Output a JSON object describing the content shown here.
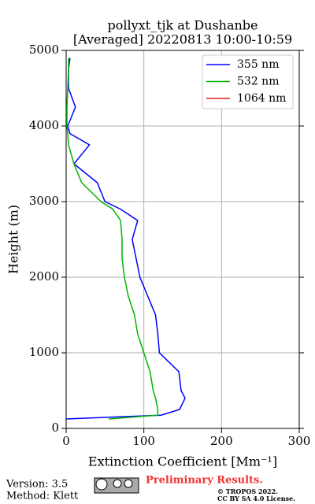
{
  "chart_data": {
    "type": "line",
    "title": "pollyxt_tjk at Dushanbe",
    "subtitle": "[Averaged] 20220813 10:00-10:59",
    "x_label": "Extinction Coefficient [Mm⁻¹]",
    "y_label": "Height (m)",
    "y": [
      125,
      175,
      250,
      400,
      500,
      750,
      1000,
      1250,
      1500,
      1750,
      2000,
      2250,
      2500,
      2750,
      2900,
      3000,
      3250,
      3500,
      3750,
      3900,
      4000,
      4250,
      4500,
      4750,
      4900
    ],
    "series": [
      {
        "name": "355 nm",
        "color": "#0000ff",
        "values": [
          0,
          122,
          146,
          153,
          148,
          145,
          120,
          118,
          115,
          105,
          95,
          90,
          85,
          92,
          70,
          50,
          40,
          10,
          30,
          5,
          2,
          12,
          3,
          3,
          5
        ]
      },
      {
        "name": "532 nm",
        "color": "#00b400",
        "values": [
          55,
          118,
          118,
          115,
          112,
          108,
          100,
          92,
          88,
          80,
          75,
          72,
          72,
          70,
          60,
          45,
          20,
          10,
          3,
          2,
          1,
          1,
          2,
          3,
          3
        ]
      },
      {
        "name": "1064 nm",
        "color": "#dd2222",
        "values": [
          null,
          null,
          null,
          null,
          null,
          null,
          null,
          null,
          null,
          null,
          null,
          null,
          null,
          null,
          null,
          null,
          null,
          null,
          null,
          null,
          null,
          null,
          null,
          null,
          null
        ]
      }
    ],
    "xlim": [
      0,
      300
    ],
    "xticks": [
      0,
      100,
      200,
      300
    ],
    "ylim": [
      0,
      5000
    ],
    "yticks": [
      0,
      1000,
      2000,
      3000,
      4000,
      5000
    ],
    "grid": true,
    "legend": "upper right",
    "footer": {
      "version": "Version: 3.5",
      "method": "Method: Klett",
      "preliminary": "Preliminary Results.",
      "copyright": "© TROPOS 2022.",
      "license": "CC BY SA 4.0 License."
    }
  }
}
